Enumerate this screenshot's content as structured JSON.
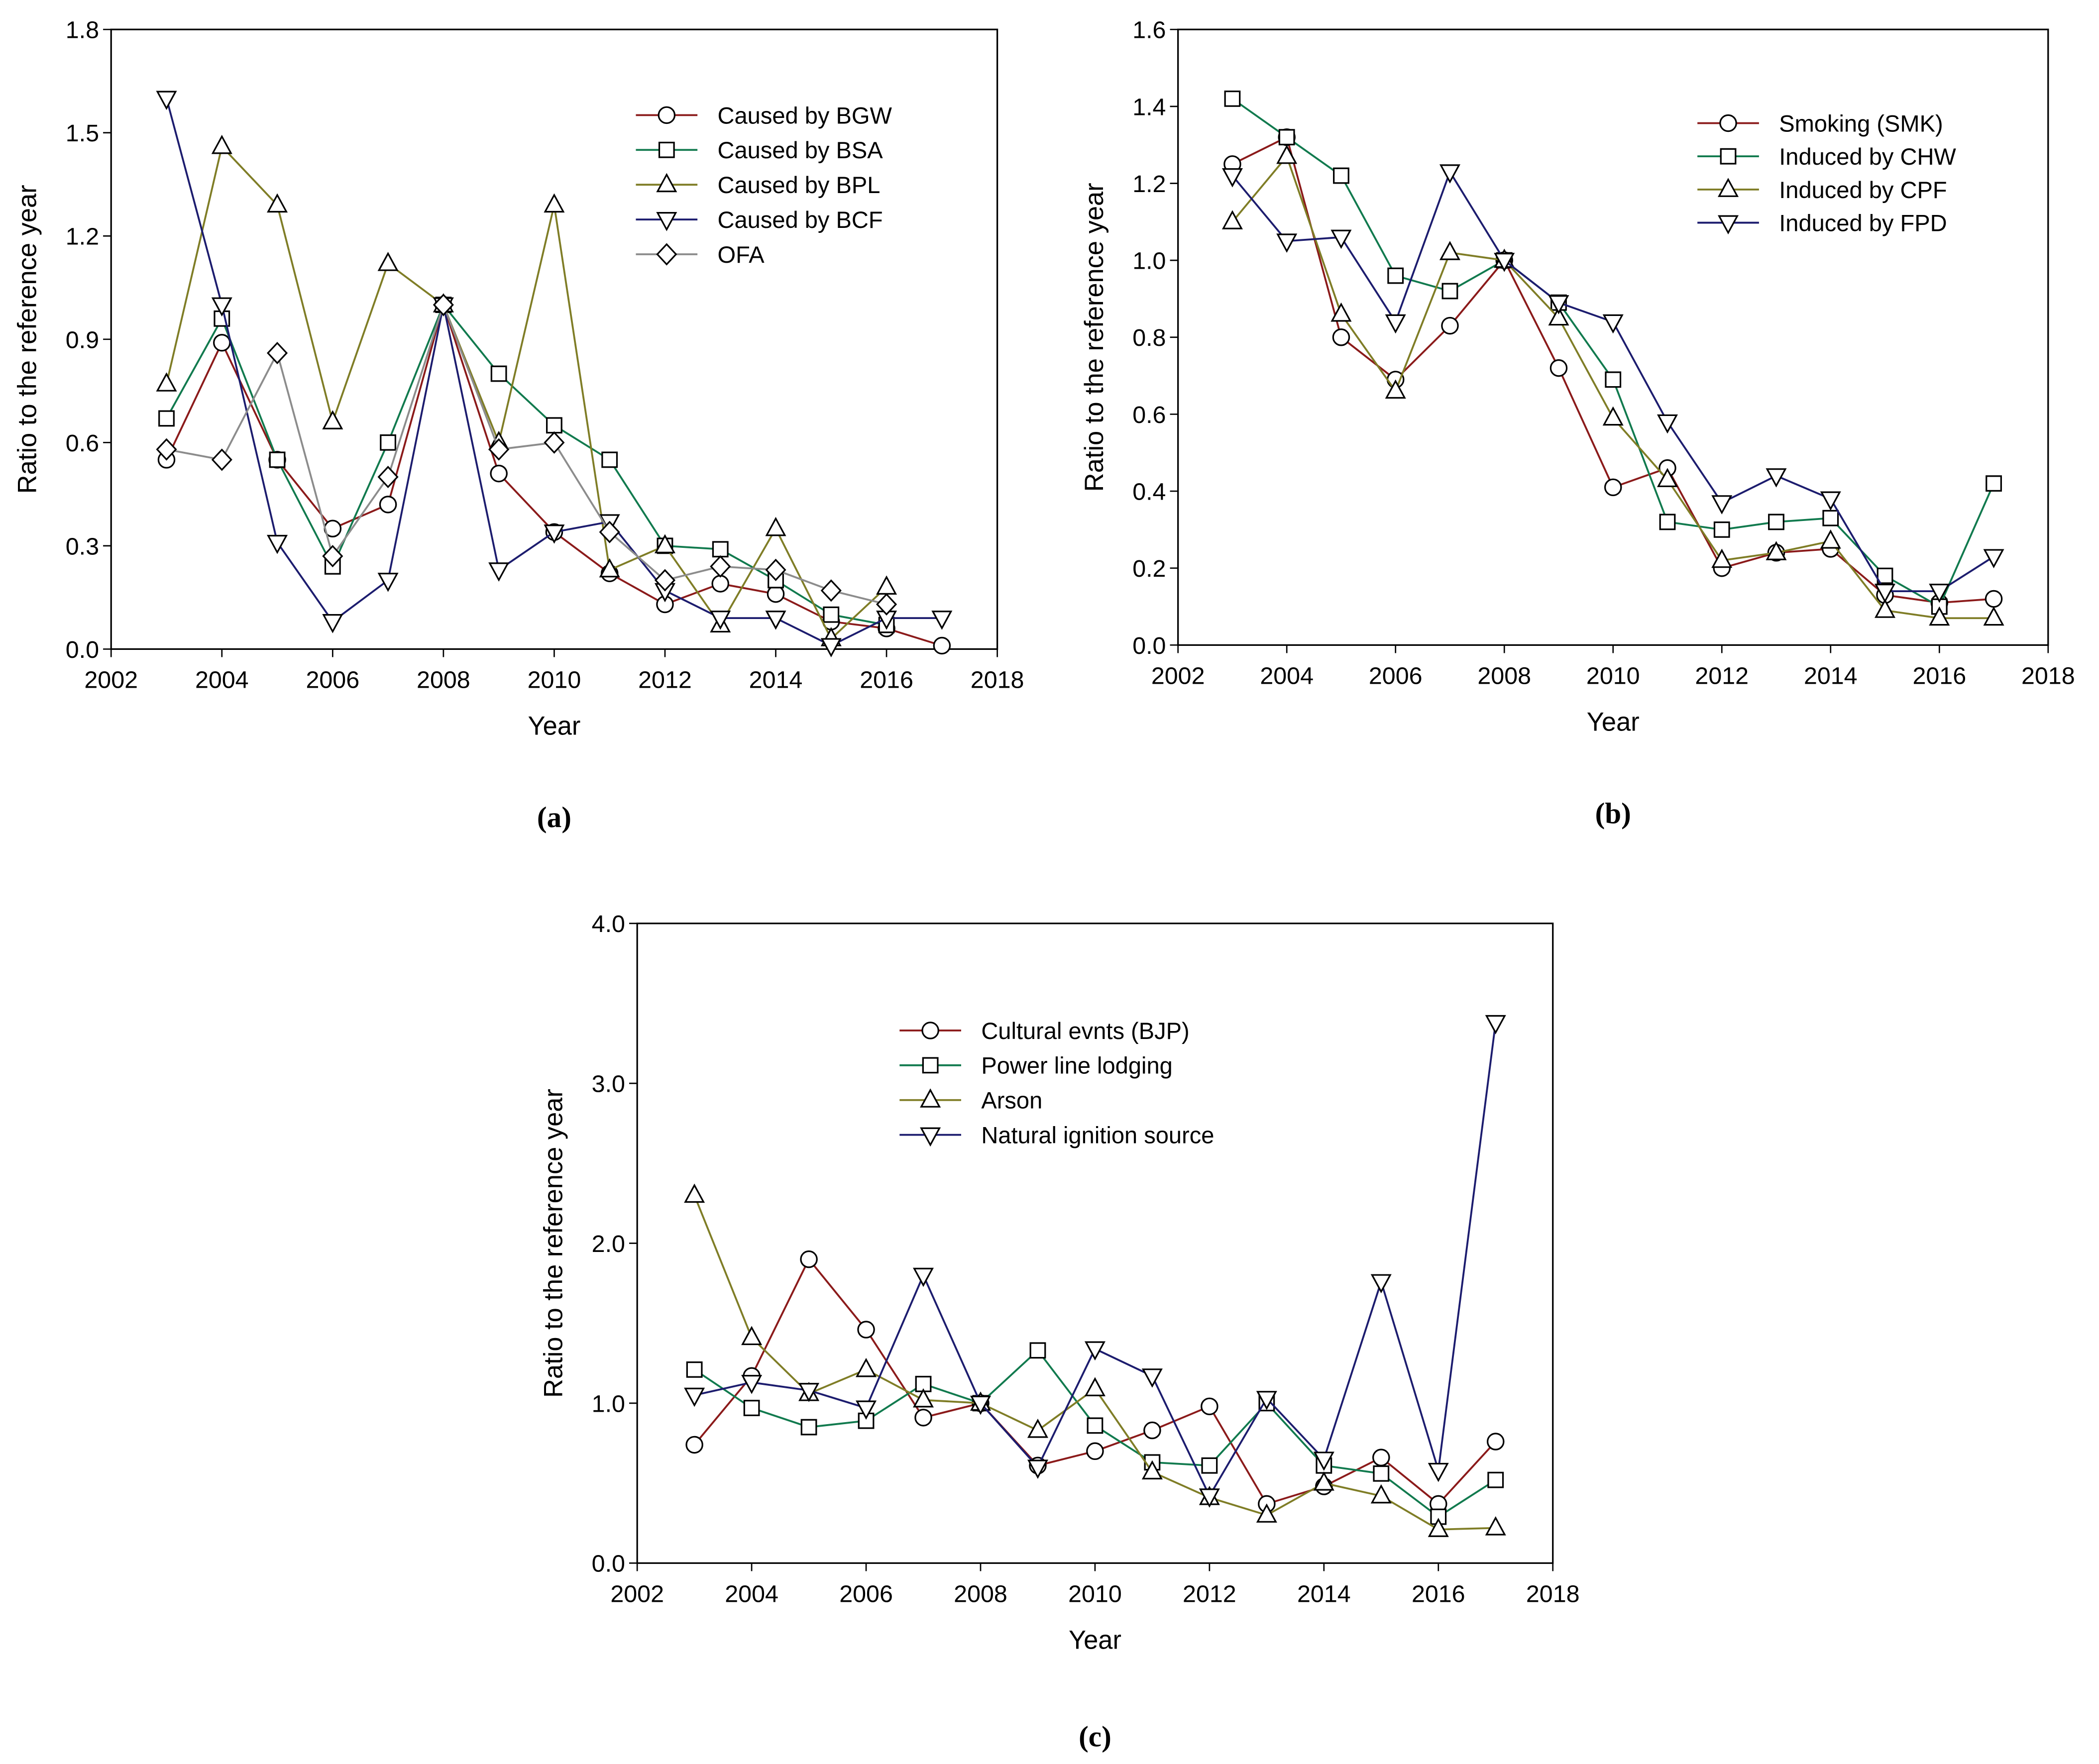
{
  "chart_data": [
    {
      "type": "line",
      "panel_label": "(a)",
      "xlabel": "Year",
      "ylabel": "Ratio to the reference year",
      "xlim": [
        2002,
        2018
      ],
      "ylim": [
        0,
        1.8
      ],
      "xticks": [
        "2002",
        "2004",
        "2006",
        "2008",
        "2010",
        "2012",
        "2014",
        "2016",
        "2018"
      ],
      "yticks": [
        "0.0",
        "0.3",
        "0.6",
        "0.9",
        "1.2",
        "1.5",
        "1.8"
      ],
      "legend_position": "top-right",
      "series": [
        {
          "name": "Caused by BGW",
          "marker": "circle",
          "color": "#8b1a1a",
          "x": [
            2003,
            2004,
            2005,
            2006,
            2007,
            2008,
            2009,
            2010,
            2011,
            2012,
            2013,
            2014,
            2015,
            2016,
            2017
          ],
          "y": [
            0.55,
            0.89,
            0.55,
            0.35,
            0.42,
            1.0,
            0.51,
            0.34,
            0.22,
            0.13,
            0.19,
            0.16,
            0.08,
            0.06,
            0.01
          ]
        },
        {
          "name": "Caused by BSA",
          "marker": "square",
          "color": "#117a4e",
          "x": [
            2003,
            2004,
            2005,
            2006,
            2007,
            2008,
            2009,
            2010,
            2011,
            2012,
            2013,
            2014,
            2015,
            2016
          ],
          "y": [
            0.67,
            0.96,
            0.55,
            0.24,
            0.6,
            1.0,
            0.8,
            0.65,
            0.55,
            0.3,
            0.29,
            0.2,
            0.1,
            0.07
          ]
        },
        {
          "name": "Caused by BPL",
          "marker": "triangle-up",
          "color": "#7f7d26",
          "x": [
            2003,
            2004,
            2005,
            2006,
            2007,
            2008,
            2009,
            2010,
            2011,
            2012,
            2013,
            2014,
            2015,
            2016
          ],
          "y": [
            0.77,
            1.46,
            1.29,
            0.66,
            1.12,
            1.0,
            0.6,
            1.29,
            0.23,
            0.3,
            0.07,
            0.35,
            0.03,
            0.18
          ]
        },
        {
          "name": "Caused by BCF",
          "marker": "triangle-down",
          "color": "#1c1c6e",
          "x": [
            2003,
            2004,
            2005,
            2006,
            2007,
            2008,
            2009,
            2010,
            2011,
            2012,
            2013,
            2014,
            2015,
            2016,
            2017
          ],
          "y": [
            1.6,
            1.0,
            0.31,
            0.08,
            0.2,
            1.0,
            0.23,
            0.34,
            0.37,
            0.17,
            0.09,
            0.09,
            0.01,
            0.09,
            0.09
          ]
        },
        {
          "name": "OFA",
          "marker": "diamond",
          "color": "#8c8c8c",
          "x": [
            2003,
            2004,
            2005,
            2006,
            2007,
            2008,
            2009,
            2010,
            2011,
            2012,
            2013,
            2014,
            2015,
            2016
          ],
          "y": [
            0.58,
            0.55,
            0.86,
            0.27,
            0.5,
            1.0,
            0.58,
            0.6,
            0.34,
            0.2,
            0.24,
            0.23,
            0.17,
            0.13
          ]
        }
      ]
    },
    {
      "type": "line",
      "panel_label": "(b)",
      "xlabel": "Year",
      "ylabel": "Ratio to the reference year",
      "xlim": [
        2002,
        2018
      ],
      "ylim": [
        0,
        1.6
      ],
      "xticks": [
        "2002",
        "2004",
        "2006",
        "2008",
        "2010",
        "2012",
        "2014",
        "2016",
        "2018"
      ],
      "yticks": [
        "0.0",
        "0.2",
        "0.4",
        "0.6",
        "0.8",
        "1.0",
        "1.2",
        "1.4",
        "1.6"
      ],
      "legend_position": "top-right",
      "series": [
        {
          "name": "Smoking (SMK)",
          "marker": "circle",
          "color": "#8b1a1a",
          "x": [
            2003,
            2004,
            2005,
            2006,
            2007,
            2008,
            2009,
            2010,
            2011,
            2012,
            2013,
            2014,
            2015,
            2016,
            2017
          ],
          "y": [
            1.25,
            1.32,
            0.8,
            0.69,
            0.83,
            1.0,
            0.72,
            0.41,
            0.46,
            0.2,
            0.24,
            0.25,
            0.13,
            0.11,
            0.12
          ]
        },
        {
          "name": "Induced by CHW",
          "marker": "square",
          "color": "#117a4e",
          "x": [
            2003,
            2004,
            2005,
            2006,
            2007,
            2008,
            2009,
            2010,
            2011,
            2012,
            2013,
            2014,
            2015,
            2016,
            2017
          ],
          "y": [
            1.42,
            1.32,
            1.22,
            0.96,
            0.92,
            1.0,
            0.89,
            0.69,
            0.32,
            0.3,
            0.32,
            0.33,
            0.18,
            0.1,
            0.42
          ]
        },
        {
          "name": "Induced by CPF",
          "marker": "triangle-up",
          "color": "#7f7d26",
          "x": [
            2003,
            2004,
            2005,
            2006,
            2007,
            2008,
            2009,
            2010,
            2011,
            2012,
            2013,
            2014,
            2015,
            2016,
            2017
          ],
          "y": [
            1.1,
            1.27,
            0.86,
            0.66,
            1.02,
            1.0,
            0.85,
            0.59,
            0.43,
            0.22,
            0.24,
            0.27,
            0.09,
            0.07,
            0.07
          ]
        },
        {
          "name": "Induced by FPD",
          "marker": "triangle-down",
          "color": "#1c1c6e",
          "x": [
            2003,
            2004,
            2005,
            2006,
            2007,
            2008,
            2009,
            2010,
            2011,
            2012,
            2013,
            2014,
            2015,
            2016,
            2017
          ],
          "y": [
            1.22,
            1.05,
            1.06,
            0.84,
            1.23,
            1.0,
            0.89,
            0.84,
            0.58,
            0.37,
            0.44,
            0.38,
            0.14,
            0.14,
            0.23
          ]
        }
      ]
    },
    {
      "type": "line",
      "panel_label": "(c)",
      "xlabel": "Year",
      "ylabel": "Ratio to the reference year",
      "xlim": [
        2002,
        2018
      ],
      "ylim": [
        0,
        4
      ],
      "xticks": [
        "2002",
        "2004",
        "2006",
        "2008",
        "2010",
        "2012",
        "2014",
        "2016",
        "2018"
      ],
      "yticks": [
        "0.0",
        "1.0",
        "2.0",
        "3.0",
        "4.0"
      ],
      "legend_position": "top-center",
      "series": [
        {
          "name": "Cultural evnts (BJP)",
          "marker": "circle",
          "color": "#8b1a1a",
          "x": [
            2003,
            2004,
            2005,
            2006,
            2007,
            2008,
            2009,
            2010,
            2011,
            2012,
            2013,
            2014,
            2015,
            2016,
            2017
          ],
          "y": [
            0.74,
            1.17,
            1.9,
            1.46,
            0.91,
            1.0,
            0.61,
            0.7,
            0.83,
            0.98,
            0.37,
            0.48,
            0.66,
            0.37,
            0.76
          ]
        },
        {
          "name": "Power line lodging",
          "marker": "square",
          "color": "#117a4e",
          "x": [
            2003,
            2004,
            2005,
            2006,
            2007,
            2008,
            2009,
            2010,
            2011,
            2012,
            2013,
            2014,
            2015,
            2016,
            2017
          ],
          "y": [
            1.21,
            0.97,
            0.85,
            0.89,
            1.12,
            1.0,
            1.33,
            0.86,
            0.63,
            0.61,
            1.0,
            0.61,
            0.56,
            0.29,
            0.52
          ]
        },
        {
          "name": "Arson",
          "marker": "triangle-up",
          "color": "#7f7d26",
          "x": [
            2003,
            2004,
            2005,
            2006,
            2007,
            2008,
            2009,
            2010,
            2011,
            2012,
            2013,
            2014,
            2015,
            2016,
            2017
          ],
          "y": [
            2.3,
            1.41,
            1.06,
            1.21,
            1.02,
            1.0,
            0.83,
            1.09,
            0.57,
            0.41,
            0.3,
            0.5,
            0.42,
            0.21,
            0.22
          ]
        },
        {
          "name": "Natural ignition source",
          "marker": "triangle-down",
          "color": "#1c1c6e",
          "x": [
            2003,
            2004,
            2005,
            2006,
            2007,
            2008,
            2009,
            2010,
            2011,
            2012,
            2013,
            2014,
            2015,
            2016,
            2017
          ],
          "y": [
            1.05,
            1.13,
            1.08,
            0.97,
            1.8,
            1.0,
            0.6,
            1.34,
            1.17,
            0.42,
            1.03,
            0.65,
            1.76,
            0.58,
            3.38
          ]
        }
      ]
    }
  ]
}
